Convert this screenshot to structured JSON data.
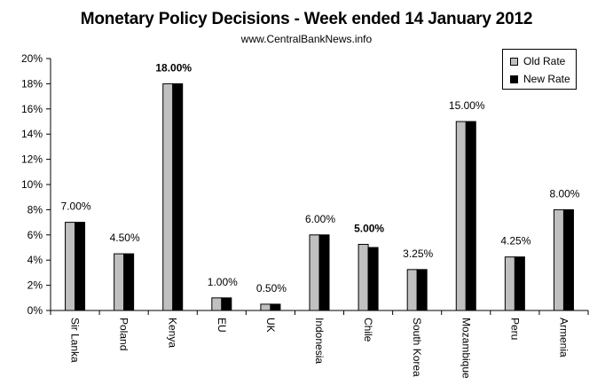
{
  "title": "Monetary Policy Decisions - Week ended  14 January 2012",
  "subtitle": "www.CentralBankNews.info",
  "colors": {
    "old_rate": "#c0c0c0",
    "new_rate": "#000000"
  },
  "legend": {
    "old_label": "Old Rate",
    "new_label": "New Rate",
    "placement": "top-right"
  },
  "chart_data": {
    "type": "bar",
    "title": "Monetary Policy Decisions - Week ended  14 January 2012",
    "categories": [
      "Sir Lanka",
      "Poland",
      "Kenya",
      "EU",
      "UK",
      "Indonesia",
      "Chile",
      "South Korea",
      "Mozambique",
      "Peru",
      "Armenia"
    ],
    "series": [
      {
        "name": "Old Rate",
        "values": [
          7.0,
          4.5,
          18.0,
          1.0,
          0.5,
          6.0,
          5.25,
          3.25,
          15.0,
          4.25,
          8.0
        ]
      },
      {
        "name": "New Rate",
        "values": [
          7.0,
          4.5,
          18.0,
          1.0,
          0.5,
          6.0,
          5.0,
          3.25,
          15.0,
          4.25,
          8.0
        ]
      }
    ],
    "data_labels": [
      "7.00%",
      "4.50%",
      "18.00%",
      "1.00%",
      "0.50%",
      "6.00%",
      "5.00%",
      "3.25%",
      "15.00%",
      "4.25%",
      "8.00%"
    ],
    "bold_labels": [
      false,
      false,
      true,
      false,
      false,
      false,
      true,
      false,
      false,
      false,
      false
    ],
    "y_ticks": [
      "0%",
      "2%",
      "4%",
      "6%",
      "8%",
      "10%",
      "12%",
      "14%",
      "16%",
      "18%",
      "20%"
    ],
    "ylim": [
      0,
      20
    ],
    "grid": false,
    "xlabel": "",
    "ylabel": ""
  }
}
